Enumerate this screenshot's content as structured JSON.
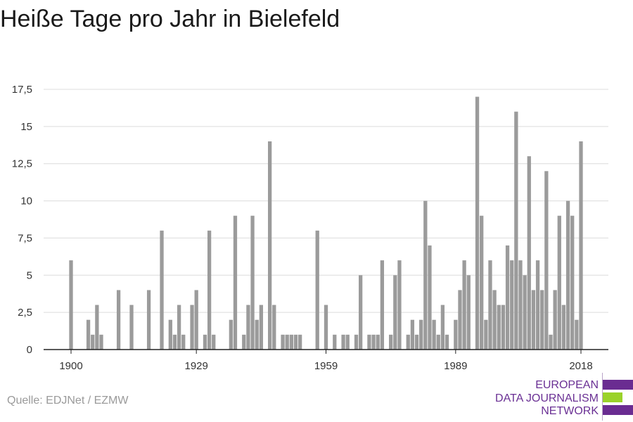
{
  "title": "Heiße Tage pro Jahr in Bielefeld",
  "source": "Quelle: EDJNet / EZMW",
  "logo": {
    "lines": [
      "EUROPEAN",
      "DATA JOURNALISM",
      "NETWORK"
    ],
    "text_color": "#6a3094",
    "bar_colors": [
      "#6a2c91",
      "#9ad22a",
      "#6a2c91"
    ]
  },
  "colors": {
    "bar": "#9b9b9b",
    "grid": "#dcdcdc",
    "axis": "#222222"
  },
  "chart_data": {
    "type": "bar",
    "title": "Heiße Tage pro Jahr in Bielefeld",
    "xlabel": "",
    "ylabel": "",
    "ylim": [
      0,
      17.5
    ],
    "y_ticks": [
      0,
      2.5,
      5,
      7.5,
      10,
      12.5,
      15,
      17.5
    ],
    "y_tick_labels": [
      "0",
      "2,5",
      "5",
      "7,5",
      "10",
      "12,5",
      "15",
      "17,5"
    ],
    "x_ticks": [
      1900,
      1929,
      1959,
      1989,
      2018
    ],
    "x_tick_labels": [
      "1900",
      "1929",
      "1959",
      "1989",
      "2018"
    ],
    "grid": true,
    "categories": [
      1900,
      1901,
      1902,
      1903,
      1904,
      1905,
      1906,
      1907,
      1908,
      1909,
      1910,
      1911,
      1912,
      1913,
      1914,
      1915,
      1916,
      1917,
      1918,
      1919,
      1920,
      1921,
      1922,
      1923,
      1924,
      1925,
      1926,
      1927,
      1928,
      1929,
      1930,
      1931,
      1932,
      1933,
      1934,
      1935,
      1936,
      1937,
      1938,
      1939,
      1940,
      1941,
      1942,
      1943,
      1944,
      1945,
      1946,
      1947,
      1948,
      1949,
      1950,
      1951,
      1952,
      1953,
      1954,
      1955,
      1956,
      1957,
      1958,
      1959,
      1960,
      1961,
      1962,
      1963,
      1964,
      1965,
      1966,
      1967,
      1968,
      1969,
      1970,
      1971,
      1972,
      1973,
      1974,
      1975,
      1976,
      1977,
      1978,
      1979,
      1980,
      1981,
      1982,
      1983,
      1984,
      1985,
      1986,
      1987,
      1988,
      1989,
      1990,
      1991,
      1992,
      1993,
      1994,
      1995,
      1996,
      1997,
      1998,
      1999,
      2000,
      2001,
      2002,
      2003,
      2004,
      2005,
      2006,
      2007,
      2008,
      2009,
      2010,
      2011,
      2012,
      2013,
      2014,
      2015,
      2016,
      2017,
      2018
    ],
    "values": [
      6,
      0,
      0,
      0,
      2,
      1,
      3,
      1,
      0,
      0,
      0,
      4,
      0,
      0,
      3,
      0,
      0,
      0,
      4,
      0,
      0,
      8,
      0,
      2,
      1,
      3,
      1,
      0,
      3,
      4,
      0,
      1,
      8,
      1,
      0,
      0,
      0,
      2,
      9,
      0,
      1,
      3,
      9,
      2,
      3,
      0,
      14,
      3,
      0,
      1,
      1,
      1,
      1,
      1,
      0,
      0,
      0,
      8,
      0,
      3,
      0,
      1,
      0,
      1,
      1,
      0,
      1,
      5,
      0,
      1,
      1,
      1,
      6,
      0,
      1,
      5,
      6,
      0,
      1,
      2,
      1,
      2,
      10,
      7,
      2,
      1,
      3,
      1,
      0,
      2,
      4,
      6,
      5,
      0,
      17,
      9,
      2,
      6,
      4,
      3,
      3,
      7,
      6,
      16,
      6,
      5,
      13,
      4,
      6,
      4,
      12,
      1,
      4,
      9,
      3,
      10,
      9,
      2,
      14
    ]
  }
}
